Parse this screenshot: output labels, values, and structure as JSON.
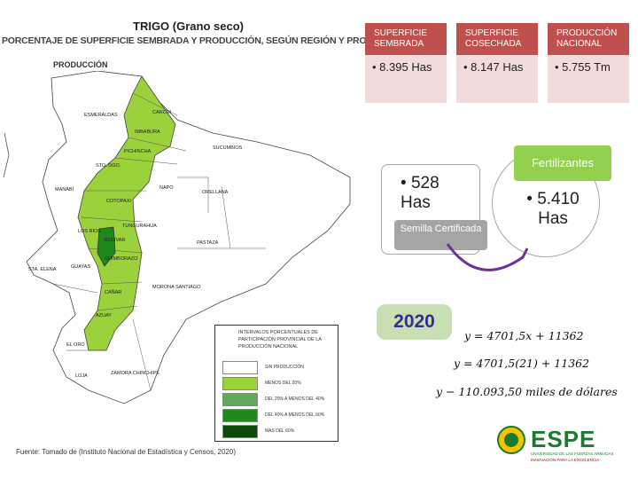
{
  "map": {
    "title": "TRIGO (Grano seco)",
    "subtitle": "PORCENTAJE DE SUPERFICIE SEMBRADA Y PRODUCCIÓN, SEGÚN REGIÓN Y PROVINCIA",
    "panel_label": "PRODUCCIÓN",
    "provinces": {
      "carchi": "CARCHI",
      "esmeraldas": "ESMERALDAS",
      "imbabura": "IMBABURA",
      "pichincha": "PICHINCHA",
      "sucumbios": "SUCUMBÍOS",
      "sto_dgo": "STO. DGO.",
      "manabi": "MANABÍ",
      "napo": "NAPO",
      "orellana": "ORELLANA",
      "cotopaxi": "COTOPAXI",
      "tungurahua": "TUNGURAHUA",
      "los_rios": "LOS RÍOS",
      "bolivar": "BOLÍVAR",
      "pastaza": "PASTAZA",
      "chimborazo": "CHIMBORAZO",
      "sta_elena": "STA. ELENA",
      "guayas": "GUAYAS",
      "canar": "CAÑAR",
      "morona_santiago": "MORONA SANTIAGO",
      "azuay": "AZUAY",
      "el_oro": "EL ORO",
      "loja": "LOJA",
      "zamora_chinchipe": "ZAMORA CHINCHIPE"
    },
    "legend": {
      "title": "Intervalos porcentuales de participación provincial de la producción nacional",
      "items": [
        {
          "label": "Sin producción",
          "color": "#ffffff"
        },
        {
          "label": "Menos del 20%",
          "color": "#9bd13b"
        },
        {
          "label": "Del 20% a menos del 40%",
          "color": "#5fa85c"
        },
        {
          "label": "Del 40% a menos del 60%",
          "color": "#1e8a1e"
        },
        {
          "label": "Más del 60%",
          "color": "#0b4a0b"
        }
      ]
    },
    "source": "Fuente: Tomado de (Instituto Nacional de Estadística y Censos, 2020)"
  },
  "stats": {
    "sembrada": {
      "label": "SUPERFICIE SEMBRADA",
      "value": "8.395 Has"
    },
    "cosechada": {
      "label": "SUPERFICIE COSECHADA",
      "value": "8.147 Has"
    },
    "produccion": {
      "label": "PRODUCCIÓN NACIONAL",
      "value": "5.755 Tm"
    }
  },
  "semilla": {
    "value": "528 Has",
    "label": "Semilla Certificada"
  },
  "fertilizantes": {
    "label": "Fertilizantes",
    "value": "5.410 Has"
  },
  "year": "2020",
  "equations": {
    "eq1": "y = 4701,5x +  11362",
    "eq2": "y = 4701,5(21) +  11362",
    "eq3": "y − 110.093,50 miles de dólares"
  },
  "logo": {
    "text": "ESPE",
    "subtext": "UNIVERSIDAD DE LAS FUERZAS ARMADAS",
    "tagline": "INNOVACIÓN PARA LA EXCELENCIA"
  },
  "colors": {
    "accent_red": "#c0504d",
    "light_red": "#f2dcdb",
    "green": "#92d050",
    "purple": "#7030a0",
    "year_blue": "#2e3192"
  }
}
